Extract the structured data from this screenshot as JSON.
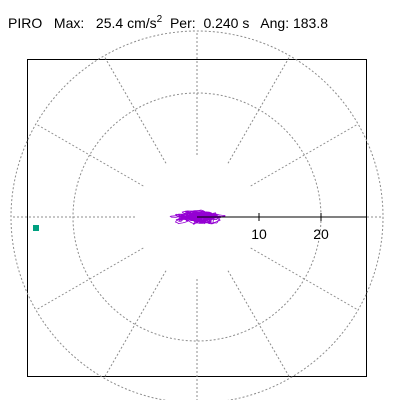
{
  "header": {
    "station": "PIRO",
    "max_label": "Max:",
    "max_value": "25.4",
    "max_unit": "cm/s",
    "max_unit_exp": "2",
    "per_label": "Per:",
    "per_value": "0.240 s",
    "ang_label": "Ang:",
    "ang_value": "183.8"
  },
  "chart_data": {
    "type": "line",
    "title": "",
    "ring_labels": [
      "10",
      "20"
    ],
    "rings": [
      10,
      20,
      30
    ],
    "spokes_deg": [
      0,
      30,
      60,
      90,
      120,
      150,
      180,
      210,
      240,
      270,
      300,
      330
    ],
    "angle_marker_deg": 183.8,
    "max_value": 25.4,
    "colors": {
      "trace": "#9400d3",
      "grid": "#8c8c8c",
      "marker": "#00a080",
      "axis": "#000000"
    }
  }
}
